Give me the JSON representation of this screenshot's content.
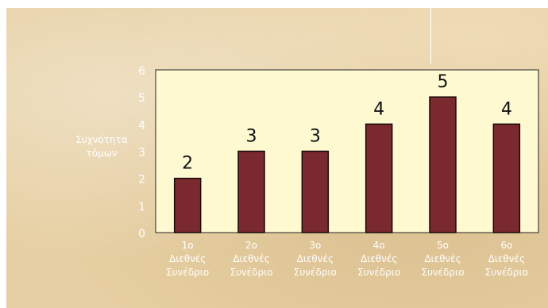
{
  "chart_data": {
    "type": "bar",
    "categories": [
      [
        "1ο",
        "Διεθνές",
        "Συνέδριο"
      ],
      [
        "2ο",
        "Διεθνές",
        "Συνέδριο"
      ],
      [
        "3ο",
        "Διεθνές",
        "Συνέδριο"
      ],
      [
        "4ο",
        "Διεθνές",
        "Συνέδριο"
      ],
      [
        "5ο",
        "Διεθνές",
        "Συνέδριο"
      ],
      [
        "6ο",
        "Διεθνές",
        "Συνέδριο"
      ]
    ],
    "values": [
      2,
      3,
      3,
      4,
      5,
      4
    ],
    "data_labels": [
      "2",
      "3",
      "3",
      "4",
      "5",
      "4"
    ],
    "ylabel": [
      "Συχνότητα",
      "τόμων"
    ],
    "ylim": [
      0,
      6
    ],
    "yticks": [
      "0",
      "1",
      "2",
      "3",
      "4",
      "5",
      "6"
    ],
    "grid": false,
    "colors": {
      "bar": "#7a2a2e",
      "plot_bg": "#fff9d2",
      "tick_text": "#ffffff",
      "label_text": "#111111"
    }
  }
}
